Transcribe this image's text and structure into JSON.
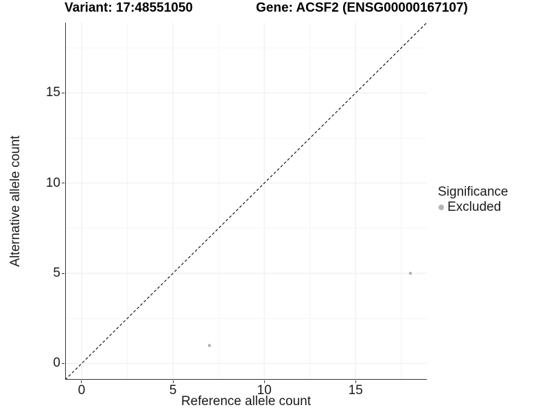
{
  "titles": {
    "variant": "Variant: 17:48551050",
    "gene": "Gene: ACSF2 (ENSG00000167107)"
  },
  "chart_data": {
    "type": "scatter",
    "titles": [
      "Variant: 17:48551050",
      "Gene: ACSF2 (ENSG00000167107)"
    ],
    "xlabel": "Reference allele count",
    "ylabel": "Alternative allele count",
    "xlim": [
      -0.9,
      18.9
    ],
    "ylim": [
      -0.9,
      18.9
    ],
    "x_ticks": [
      0,
      5,
      10,
      15
    ],
    "y_ticks": [
      0,
      5,
      10,
      15
    ],
    "x_minor_ticks": [
      2.5,
      7.5,
      12.5,
      17.5
    ],
    "y_minor_ticks": [
      2.5,
      7.5,
      12.5,
      17.5
    ],
    "grid": true,
    "identity_line": {
      "slope": 1,
      "intercept": 0,
      "style": "dashed",
      "color": "#000000"
    },
    "series": [
      {
        "name": "Excluded",
        "color": "#b4b4b4",
        "points": [
          {
            "x": 7,
            "y": 1
          },
          {
            "x": 18,
            "y": 5
          }
        ]
      }
    ],
    "legend": {
      "title": "Significance",
      "position": "right",
      "items": [
        {
          "label": "Excluded",
          "color": "#b4b4b4"
        }
      ]
    }
  },
  "colors": {
    "background": "#ffffff",
    "axis_line": "#333333",
    "tick_label": "#1a1a1a",
    "grid_major": "#ebebeb",
    "grid_minor": "#f5f5f5"
  }
}
